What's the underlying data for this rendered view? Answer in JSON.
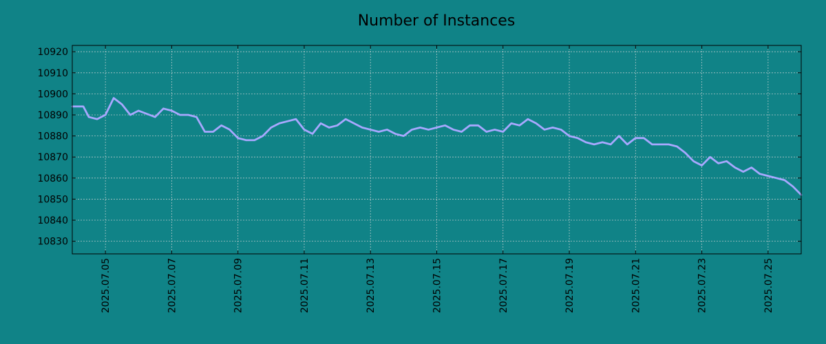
{
  "chart_data": {
    "type": "line",
    "title": "Number of Instances",
    "xlabel": "",
    "ylabel": "",
    "background_color": "#108387",
    "line_color": "#a8a8ff",
    "grid": true,
    "x_range": [
      "2025.07.04 00:00",
      "2025.07.26 00:00"
    ],
    "ylim": [
      10824,
      10923
    ],
    "x_tick_labels": [
      "2025.07.05",
      "2025.07.07",
      "2025.07.09",
      "2025.07.11",
      "2025.07.13",
      "2025.07.15",
      "2025.07.17",
      "2025.07.19",
      "2025.07.21",
      "2025.07.23",
      "2025.07.25"
    ],
    "y_ticks": [
      10830,
      10840,
      10850,
      10860,
      10870,
      10880,
      10890,
      10900,
      10910,
      10920
    ],
    "series": [
      {
        "x": [
          "2025.07.04 00:00",
          "2025.07.04 08:00",
          "2025.07.04 12:00",
          "2025.07.04 18:00",
          "2025.07.05 00:00",
          "2025.07.05 06:00",
          "2025.07.05 12:00",
          "2025.07.05 18:00",
          "2025.07.06 00:00",
          "2025.07.06 08:00",
          "2025.07.06 12:00",
          "2025.07.06 18:00",
          "2025.07.07 00:00",
          "2025.07.07 06:00",
          "2025.07.07 12:00",
          "2025.07.07 18:00",
          "2025.07.08 00:00",
          "2025.07.08 06:00",
          "2025.07.08 12:00",
          "2025.07.08 18:00",
          "2025.07.09 00:00",
          "2025.07.09 06:00",
          "2025.07.09 12:00",
          "2025.07.09 18:00",
          "2025.07.10 00:00",
          "2025.07.10 06:00",
          "2025.07.10 12:00",
          "2025.07.10 18:00",
          "2025.07.11 00:00",
          "2025.07.11 06:00",
          "2025.07.11 12:00",
          "2025.07.11 18:00",
          "2025.07.12 00:00",
          "2025.07.12 06:00",
          "2025.07.12 12:00",
          "2025.07.12 18:00",
          "2025.07.13 00:00",
          "2025.07.13 06:00",
          "2025.07.13 12:00",
          "2025.07.13 18:00",
          "2025.07.14 00:00",
          "2025.07.14 06:00",
          "2025.07.14 12:00",
          "2025.07.14 18:00",
          "2025.07.15 00:00",
          "2025.07.15 06:00",
          "2025.07.15 12:00",
          "2025.07.15 18:00",
          "2025.07.16 00:00",
          "2025.07.16 06:00",
          "2025.07.16 12:00",
          "2025.07.16 18:00",
          "2025.07.17 00:00",
          "2025.07.17 06:00",
          "2025.07.17 12:00",
          "2025.07.17 18:00",
          "2025.07.18 00:00",
          "2025.07.18 06:00",
          "2025.07.18 12:00",
          "2025.07.18 18:00",
          "2025.07.19 00:00",
          "2025.07.19 06:00",
          "2025.07.19 12:00",
          "2025.07.19 18:00",
          "2025.07.20 00:00",
          "2025.07.20 06:00",
          "2025.07.20 12:00",
          "2025.07.20 18:00",
          "2025.07.21 00:00",
          "2025.07.21 06:00",
          "2025.07.21 12:00",
          "2025.07.21 18:00",
          "2025.07.22 00:00",
          "2025.07.22 06:00",
          "2025.07.22 12:00",
          "2025.07.22 18:00",
          "2025.07.23 00:00",
          "2025.07.23 06:00",
          "2025.07.23 12:00",
          "2025.07.23 18:00",
          "2025.07.24 00:00",
          "2025.07.24 06:00",
          "2025.07.24 12:00",
          "2025.07.24 18:00",
          "2025.07.25 00:00",
          "2025.07.25 06:00",
          "2025.07.25 12:00",
          "2025.07.25 18:00",
          "2025.07.26 00:00"
        ],
        "values": [
          10894,
          10894,
          10889,
          10888,
          10890,
          10898,
          10895,
          10890,
          10892,
          10890,
          10889,
          10893,
          10892,
          10890,
          10890,
          10889,
          10882,
          10882,
          10885,
          10883,
          10879,
          10878,
          10878,
          10880,
          10884,
          10886,
          10887,
          10888,
          10883,
          10881,
          10886,
          10884,
          10885,
          10888,
          10886,
          10884,
          10883,
          10882,
          10883,
          10881,
          10880,
          10883,
          10884,
          10883,
          10884,
          10885,
          10883,
          10882,
          10885,
          10885,
          10882,
          10883,
          10882,
          10886,
          10885,
          10888,
          10886,
          10883,
          10884,
          10883,
          10880,
          10879,
          10877,
          10876,
          10877,
          10876,
          10880,
          10876,
          10879,
          10879,
          10876,
          10876,
          10876,
          10875,
          10872,
          10868,
          10866,
          10870,
          10867,
          10868,
          10865,
          10863,
          10865,
          10862,
          10861,
          10860,
          10859,
          10856,
          10852
        ]
      }
    ]
  }
}
